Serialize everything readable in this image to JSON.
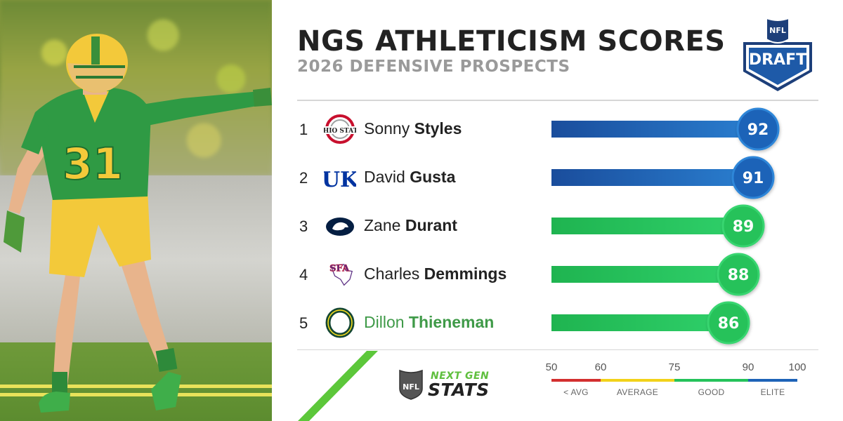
{
  "header": {
    "title": "NGS ATHLETICISM SCORES",
    "subtitle": "2026 DEFENSIVE PROSPECTS"
  },
  "logos": {
    "draft_logo_top": "NFL",
    "draft_logo_text": "DRAFT",
    "ngs_next": "NEXT GEN",
    "ngs_stats": "STATS",
    "ngs_shield": "NFL"
  },
  "colors": {
    "elite": "#1e63b8",
    "good": "#25c25a",
    "average": "#f2d21a",
    "below_avg": "#d32f2f",
    "highlight_name": "#3f9a48"
  },
  "chart_data": {
    "type": "bar",
    "orientation": "horizontal",
    "categories": [
      "Sonny Styles",
      "David Gusta",
      "Zane Durant",
      "Charles Demmings",
      "Dillon Thieneman"
    ],
    "values": [
      92,
      91,
      89,
      88,
      86
    ],
    "xlim": [
      50,
      100
    ],
    "x_ticks": [
      50,
      60,
      75,
      90,
      100
    ],
    "tiers": [
      {
        "label": "< AVG",
        "from": 50,
        "to": 60,
        "color": "#d32f2f"
      },
      {
        "label": "AVERAGE",
        "from": 60,
        "to": 75,
        "color": "#f2d21a"
      },
      {
        "label": "GOOD",
        "from": 75,
        "to": 90,
        "color": "#25c25a"
      },
      {
        "label": "ELITE",
        "from": 90,
        "to": 100,
        "color": "#1e63b8"
      }
    ],
    "rows": [
      {
        "rank": "1",
        "first": "Sonny",
        "last": "Styles",
        "school_icon": "ohio-state-logo-icon",
        "value": 92,
        "tier": "elite",
        "highlight": false
      },
      {
        "rank": "2",
        "first": "David",
        "last": "Gusta",
        "school_icon": "kentucky-logo-icon",
        "value": 91,
        "tier": "elite",
        "highlight": false
      },
      {
        "rank": "3",
        "first": "Zane",
        "last": "Durant",
        "school_icon": "penn-state-logo-icon",
        "value": 89,
        "tier": "good",
        "highlight": false
      },
      {
        "rank": "4",
        "first": "Charles",
        "last": "Demmings",
        "school_icon": "stephen-f-austin-logo-icon",
        "value": 88,
        "tier": "good",
        "highlight": false
      },
      {
        "rank": "5",
        "first": "Dillon",
        "last": "Thieneman",
        "school_icon": "oregon-logo-icon",
        "value": 86,
        "tier": "good",
        "highlight": true
      }
    ]
  }
}
